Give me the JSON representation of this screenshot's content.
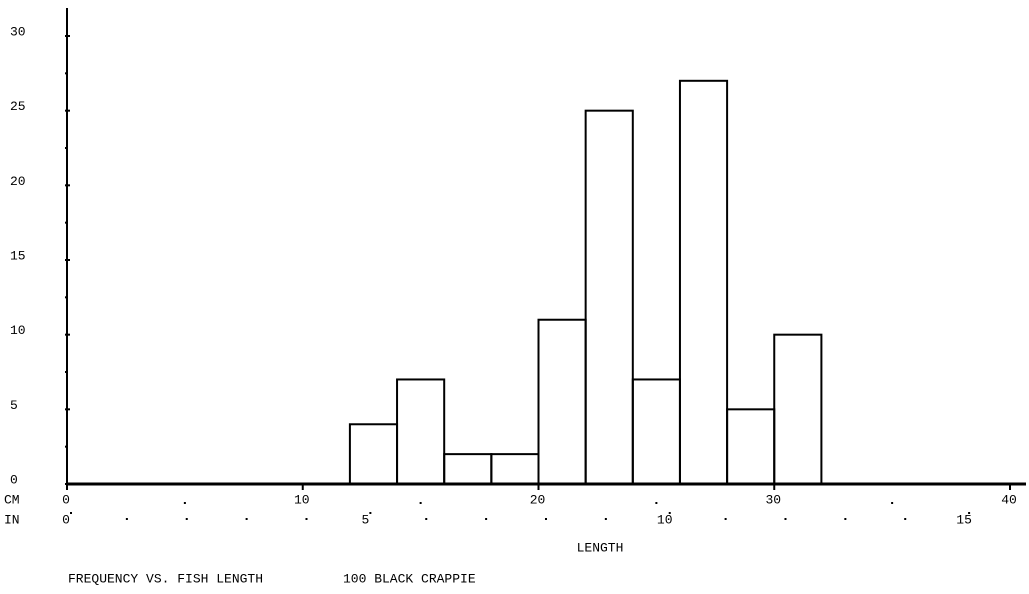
{
  "chart_data": {
    "type": "histogram",
    "title": "FREQUENCY VS. FISH LENGTH",
    "subtitle": "100 BLACK CRAPPIE",
    "xlabel": "LENGTH",
    "x_unit": "CM",
    "x2_unit": "IN",
    "bins": [
      12,
      14,
      16,
      18,
      20,
      22,
      24,
      26,
      28,
      30,
      32
    ],
    "values": [
      4,
      7,
      2,
      2,
      11,
      25,
      7,
      27,
      5,
      10
    ],
    "color": "#000000",
    "xlim": [
      0,
      40
    ],
    "xticks": [
      0,
      10,
      20,
      30,
      40
    ],
    "xminor": [
      5,
      15,
      25,
      35
    ],
    "x2lim": [
      0,
      15.75
    ],
    "x2ticks": [
      0,
      5,
      10,
      15
    ],
    "x2minor": [
      1,
      2,
      3,
      4,
      6,
      7,
      8,
      9,
      11,
      12,
      13,
      14
    ],
    "ylim": [
      0,
      30
    ],
    "yticks": [
      0,
      5,
      10,
      15,
      20,
      25,
      30
    ],
    "yminor": [
      2.5,
      7.5,
      12.5,
      17.5,
      22.5,
      27.5
    ]
  }
}
